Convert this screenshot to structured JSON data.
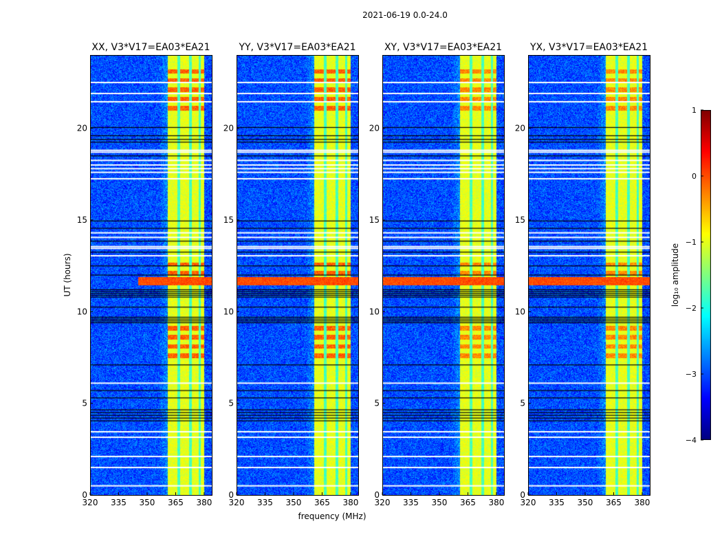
{
  "chart_data": {
    "type": "heatmap",
    "title": "2021-06-19 0.0-24.0",
    "xlabel": "frequency (MHz)",
    "ylabel": "UT (hours)",
    "xlim": [
      320,
      384
    ],
    "ylim": [
      0,
      24
    ],
    "xticks": [
      "320",
      "335",
      "350",
      "365",
      "380"
    ],
    "xtick_values": [
      320,
      335,
      350,
      365,
      380
    ],
    "yticks": [
      "0",
      "5",
      "10",
      "15",
      "20"
    ],
    "ytick_values": [
      0,
      5,
      10,
      15,
      20
    ],
    "panels": [
      {
        "title": "XX, V3*V17=EA03*EA21"
      },
      {
        "title": "YY, V3*V17=EA03*EA21"
      },
      {
        "title": "XY, V3*V17=EA03*EA21"
      },
      {
        "title": "YX, V3*V17=EA03*EA21"
      }
    ],
    "colorbar": {
      "label": "log₁₀ amplitude",
      "range": [
        -4,
        1
      ],
      "ticks": [
        "1",
        "0",
        "−1",
        "−2",
        "−3",
        "−4"
      ],
      "tick_values": [
        1,
        0,
        -1,
        -2,
        -3,
        -4
      ],
      "colormap": "jet"
    },
    "background_level": -3,
    "rfi_band_mhz": [
      360.5,
      380
    ],
    "rfi_band_level": -1,
    "subband_gaps_mhz": [
      366.5,
      372.5,
      377.5
    ],
    "strong_rfi_times_hr": [
      [
        21.0,
        23.5
      ],
      [
        11.7,
        12.7
      ],
      [
        7.5,
        9.3
      ]
    ],
    "broadband_rfi_hr": [
      11.45,
      11.9
    ],
    "flagged_white_hr": [
      22.5,
      21.9,
      21.45,
      18.7,
      18.8,
      18.25,
      18.0,
      17.8,
      17.6,
      17.25,
      14.3,
      14.05,
      13.45,
      13.55,
      13.05,
      6.1,
      3.45,
      3.15,
      2.1,
      1.5,
      0.5
    ],
    "flagged_black_hr": [
      20.05,
      19.6,
      19.4,
      19.25,
      18.5,
      14.95,
      14.55,
      13.85,
      13.25,
      12.5,
      12.0,
      11.2,
      11.1,
      11.0,
      10.9,
      10.8,
      10.25,
      9.7,
      9.6,
      9.5,
      9.4,
      7.1,
      5.7,
      5.3,
      4.65,
      4.5,
      4.35,
      4.2,
      4.05
    ]
  }
}
